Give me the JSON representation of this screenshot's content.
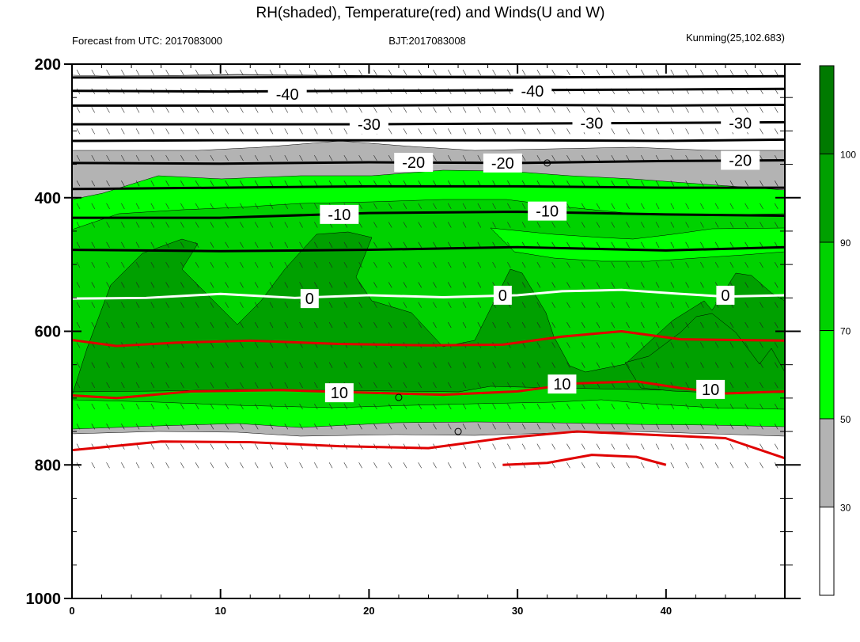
{
  "chart_data": {
    "type": "heatmap",
    "title": "RH(shaded), Temperature(red) and Winds(U and W)",
    "subtitle_left": "Forecast from UTC: 2017083000",
    "subtitle_center": "BJT:2017083008",
    "subtitle_right": "Kunming(25,102.683)",
    "xlabel": "",
    "ylabel": "",
    "xlim": [
      0,
      48
    ],
    "ylim": [
      200,
      1000
    ],
    "y_reversed": true,
    "x_ticks": [
      "0",
      "10",
      "20",
      "30",
      "40"
    ],
    "y_ticks": [
      "200",
      "400",
      "600",
      "800",
      "1000"
    ],
    "colorbar": {
      "levels": [
        "30",
        "50",
        "70",
        "90",
        "100"
      ],
      "colors": [
        "#ffffff",
        "#b3b3b3",
        "#00ff00",
        "#00d200",
        "#00a000",
        "#007a00"
      ]
    },
    "temperature_labels": {
      "cold": [
        {
          "text": "-40",
          "x": 14.5,
          "y": 245
        },
        {
          "text": "-40",
          "x": 31,
          "y": 240
        },
        {
          "text": "-30",
          "x": 20,
          "y": 290
        },
        {
          "text": "-30",
          "x": 35,
          "y": 288
        },
        {
          "text": "-30",
          "x": 45,
          "y": 288
        },
        {
          "text": "-20",
          "x": 23,
          "y": 347
        },
        {
          "text": "-20",
          "x": 29,
          "y": 348
        },
        {
          "text": "-20",
          "x": 45,
          "y": 344
        },
        {
          "text": "-10",
          "x": 18,
          "y": 425
        },
        {
          "text": "-10",
          "x": 32,
          "y": 420
        }
      ],
      "zero": [
        {
          "text": "0",
          "x": 16,
          "y": 551
        },
        {
          "text": "0",
          "x": 29,
          "y": 546
        },
        {
          "text": "0",
          "x": 44,
          "y": 546
        }
      ],
      "warm": [
        {
          "text": "10",
          "x": 18,
          "y": 692
        },
        {
          "text": "10",
          "x": 33,
          "y": 679
        },
        {
          "text": "10",
          "x": 43,
          "y": 687
        }
      ]
    }
  }
}
